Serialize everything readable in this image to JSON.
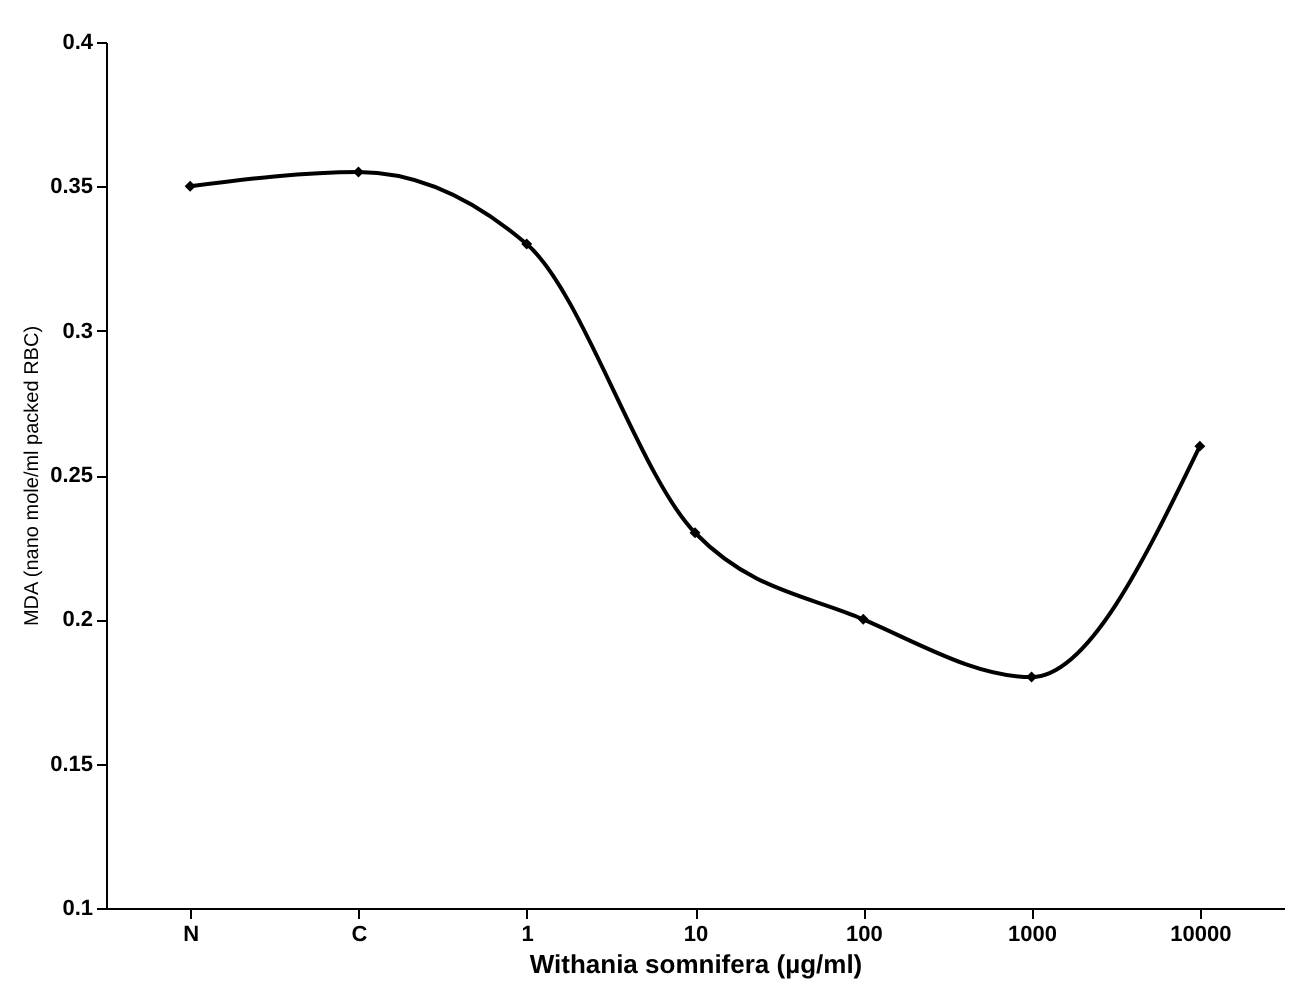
{
  "chart_data": {
    "type": "line",
    "xlabel": "Withania somnifera (µg/ml)",
    "ylabel": "MDA (nano mole/ml packed RBC)",
    "categories": [
      "N",
      "C",
      "1",
      "10",
      "100",
      "1000",
      "10000"
    ],
    "values": [
      0.35,
      0.355,
      0.33,
      0.23,
      0.2,
      0.18,
      0.26
    ],
    "color": "#000000",
    "ylim": [
      0.1,
      0.4
    ],
    "yticks": [
      0.1,
      0.15,
      0.2,
      0.25,
      0.3,
      0.35,
      0.4
    ],
    "marker": "diamond",
    "line_style": "solid",
    "grid": false
  }
}
